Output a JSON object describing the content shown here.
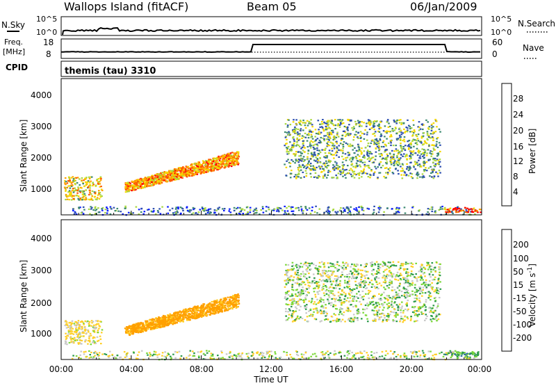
{
  "header": {
    "station": "Wallops Island (fitACF)",
    "beam": "Beam 05",
    "date": "06/Jan/2009"
  },
  "nsky_panel": {
    "left_label": "N.Sky",
    "left_ticks": [
      "10^5",
      "10^0"
    ],
    "right_ticks": [
      "10^5",
      "10^0"
    ],
    "right_label": "N.Search"
  },
  "freq_panel": {
    "left_label_top": "Freq.",
    "left_label_unit": "[MHz]",
    "left_ticks": [
      "18",
      "8"
    ],
    "right_ticks": [
      "60",
      "0"
    ],
    "right_label": "Nave"
  },
  "cpid_panel": {
    "left_label": "CPID",
    "text": "themis (tau) 3310"
  },
  "xaxis": {
    "ticks": [
      "00:00",
      "04:00",
      "08:00",
      "12:00",
      "16:00",
      "20:00",
      "00:00"
    ],
    "label": "Time UT"
  },
  "power_panel": {
    "ylabel": "Slant Range [km]",
    "yticks": [
      "4000",
      "3000",
      "2000",
      "1000"
    ],
    "colorbar_label": "Power [dB]",
    "colorbar_ticks": [
      "28",
      "24",
      "20",
      "16",
      "12",
      "8",
      "4"
    ],
    "colors": [
      "#0a1cff",
      "#2e4fb0",
      "#3e8a70",
      "#a8d840",
      "#f5d800",
      "#ffa200",
      "#ff5a00",
      "#ff0000"
    ]
  },
  "velocity_panel": {
    "ylabel": "Slant Range [km]",
    "yticks": [
      "4000",
      "3000",
      "2000",
      "1000"
    ],
    "colorbar_label": "Velocity [m s",
    "colorbar_label_sup": "-1",
    "colorbar_label_end": "]",
    "colorbar_ticks": [
      "200",
      "100",
      "50",
      "15",
      "-15",
      "-50",
      "-100",
      "-200"
    ],
    "colors": [
      "#1c2cb8",
      "#2f6aa0",
      "#2b9a4a",
      "#7cd83a",
      "#c8c8c8",
      "#ffcf26",
      "#ffa000",
      "#ff5a00",
      "#ff1010"
    ]
  },
  "chart_data": {
    "type": "heatmap",
    "x_unit": "hours UT",
    "xlim": [
      0,
      24
    ],
    "ylim": [
      200,
      4600
    ],
    "clusters": [
      {
        "t0": 0.15,
        "t1": 2.3,
        "r0": 700,
        "r1": 1450,
        "power": 18,
        "velocity": -20,
        "density": 0.75
      },
      {
        "t0": 3.6,
        "t1": 10.1,
        "r0": 950,
        "r1": 2300,
        "power": 22,
        "velocity": -70,
        "density": 0.7
      },
      {
        "t0": 12.7,
        "t1": 21.6,
        "r0": 1400,
        "r1": 3300,
        "power": 12,
        "velocity": 0,
        "density": 0.45
      },
      {
        "t0": 0.5,
        "t1": 23.8,
        "r0": 220,
        "r1": 500,
        "power": 8,
        "velocity": -5,
        "density": 0.35
      },
      {
        "t0": 21.8,
        "t1": 23.9,
        "r0": 300,
        "r1": 460,
        "power": 26,
        "velocity": 30,
        "density": 0.85
      }
    ]
  }
}
